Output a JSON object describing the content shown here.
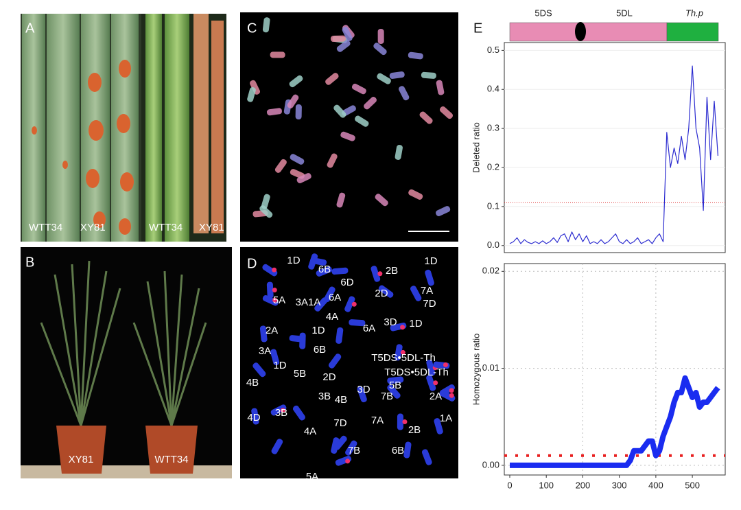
{
  "panels": {
    "A": {
      "label": "A",
      "captions": [
        "WTT34",
        "XY81",
        "WTT34",
        "XY81"
      ]
    },
    "B": {
      "label": "B",
      "captions": [
        "XY81",
        "WTT34"
      ]
    },
    "C": {
      "label": "C"
    },
    "D": {
      "label": "D",
      "chromosome_labels": [
        "1D",
        "6B",
        "2B",
        "1D",
        "6D",
        "2D",
        "7A",
        "5A",
        "3A1A",
        "6A",
        "7D",
        "4A",
        "3D",
        "1D",
        "2A",
        "1D",
        "6A",
        "6B",
        "3A",
        "T5DS•5DL-Th",
        "1D",
        "5B",
        "2D",
        "T5DS•5DL-Th",
        "5B",
        "4B",
        "3B",
        "4B",
        "3D",
        "7B",
        "2A",
        "4D",
        "3B",
        "7D",
        "7A",
        "1A",
        "2B",
        "4A",
        "5A",
        "7B",
        "6B"
      ]
    },
    "E": {
      "label": "E",
      "bar_labels": [
        "5DS",
        "5DL",
        "Th.p"
      ]
    }
  },
  "chart_data": [
    {
      "type": "line",
      "y_label": "Deleted ratio",
      "x": [
        0,
        10,
        20,
        30,
        40,
        50,
        60,
        70,
        80,
        90,
        100,
        110,
        120,
        130,
        140,
        150,
        160,
        170,
        180,
        190,
        200,
        210,
        220,
        230,
        240,
        250,
        260,
        270,
        280,
        290,
        300,
        310,
        320,
        330,
        340,
        350,
        360,
        370,
        380,
        390,
        400,
        410,
        420,
        430,
        440,
        450,
        460,
        470,
        480,
        490,
        500,
        510,
        520,
        530,
        540,
        550,
        560,
        570
      ],
      "series": [
        {
          "name": "Deleted ratio",
          "color": "#2b2bd0",
          "values": [
            0.005,
            0.01,
            0.02,
            0.005,
            0.015,
            0.008,
            0.005,
            0.01,
            0.005,
            0.012,
            0.005,
            0.01,
            0.02,
            0.008,
            0.025,
            0.03,
            0.01,
            0.035,
            0.015,
            0.03,
            0.01,
            0.025,
            0.005,
            0.01,
            0.005,
            0.015,
            0.005,
            0.01,
            0.02,
            0.03,
            0.01,
            0.005,
            0.015,
            0.005,
            0.01,
            0.02,
            0.005,
            0.01,
            0.015,
            0.005,
            0.02,
            0.03,
            0.01,
            0.29,
            0.2,
            0.25,
            0.21,
            0.28,
            0.22,
            0.3,
            0.46,
            0.3,
            0.25,
            0.09,
            0.38,
            0.22,
            0.37,
            0.23
          ]
        }
      ],
      "threshold": 0.11,
      "threshold_color": "#e03030",
      "xlim": [
        -15,
        590
      ],
      "ylim": [
        -0.018,
        0.52
      ],
      "yticks": [
        {
          "value": 0,
          "label": "0.0"
        },
        0.1,
        0.2,
        0.3,
        0.4,
        0.5
      ],
      "grid": true
    },
    {
      "type": "line",
      "y_label": "Homozygous ratio",
      "x": [
        0,
        10,
        20,
        30,
        40,
        50,
        60,
        70,
        80,
        90,
        100,
        110,
        120,
        130,
        140,
        150,
        160,
        170,
        180,
        190,
        200,
        210,
        220,
        230,
        240,
        250,
        260,
        270,
        280,
        290,
        300,
        310,
        320,
        330,
        340,
        350,
        360,
        370,
        380,
        390,
        400,
        410,
        420,
        430,
        440,
        450,
        460,
        470,
        480,
        490,
        500,
        510,
        520,
        530,
        540,
        550,
        560,
        570
      ],
      "series": [
        {
          "name": "Homozygous ratio",
          "color": "#1a2cf0",
          "values": [
            0,
            0,
            0,
            0,
            0,
            0,
            0,
            0,
            0,
            0,
            0,
            0,
            0,
            0,
            0,
            0,
            0,
            0,
            0,
            0,
            0,
            0,
            0,
            0,
            0,
            0,
            0,
            0,
            0,
            0,
            0,
            0,
            0,
            0.0005,
            0.0015,
            0.0015,
            0.0015,
            0.002,
            0.0025,
            0.0025,
            0.001,
            0.0015,
            0.003,
            0.004,
            0.005,
            0.0065,
            0.0075,
            0.0075,
            0.009,
            0.008,
            0.007,
            0.0075,
            0.006,
            0.0065,
            0.0065,
            0.007,
            0.0075,
            0.008
          ]
        }
      ],
      "threshold": 0.001,
      "threshold_color": "#e82020",
      "xlim": [
        -15,
        590
      ],
      "ylim": [
        -0.001,
        0.0208
      ],
      "xticks": [
        0,
        100,
        200,
        300,
        400,
        500
      ],
      "yticks": [
        {
          "value": 0,
          "label": "0.00"
        },
        {
          "value": 0.01,
          "label": "0.01"
        },
        {
          "value": 0.02,
          "label": "0.02"
        }
      ],
      "grid": true
    }
  ]
}
